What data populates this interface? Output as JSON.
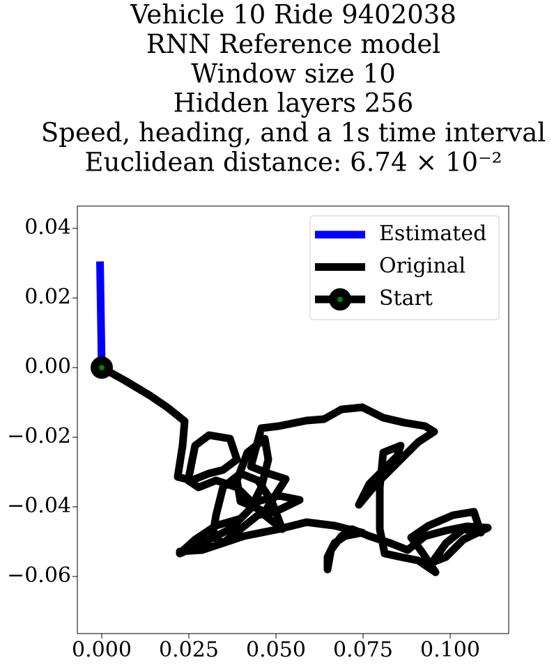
{
  "chart_data": {
    "type": "line",
    "title": [
      "Vehicle 10 Ride 9402038",
      "RNN Reference model",
      "Window size 10",
      "Hidden layers 256",
      "Speed, heading, and a 1s time interval",
      "Euclidean distance: 6.74 × 10⁻²"
    ],
    "xlim": [
      -0.007,
      0.1168
    ],
    "ylim": [
      -0.0764,
      0.0464
    ],
    "xticks": [
      {
        "value": 0,
        "label": "0.000"
      },
      0.025,
      {
        "value": 0.05,
        "label": "0.050"
      },
      0.075,
      {
        "value": 0.1,
        "label": "0.100"
      }
    ],
    "yticks": [
      0.04,
      0.02,
      {
        "value": 0,
        "label": "0.00"
      },
      {
        "value": -0.02,
        "label": "−0.02"
      },
      {
        "value": -0.04,
        "label": "−0.04"
      },
      {
        "value": -0.06,
        "label": "−0.06"
      }
    ],
    "grid": false,
    "legend": "upper right",
    "series": [
      {
        "name": "Estimated",
        "color": "#0000ff",
        "x": [
          -0.0005,
          0.0
        ],
        "values": [
          0.0305,
          0.0
        ]
      },
      {
        "name": "Original",
        "color": "#000000",
        "x": [
          0,
          0.0068,
          0.0138,
          0.0188,
          0.0238,
          0.0232,
          0.0218,
          0.0258,
          0.0308,
          0.0348,
          0.0388,
          0.0368,
          0.0308,
          0.0268,
          0.0248,
          0.0278,
          0.0328,
          0.0388,
          0.0428,
          0.0468,
          0.0518,
          0.0488,
          0.0448,
          0.0398,
          0.0348,
          0.0328,
          0.0318,
          0.0348,
          0.0398,
          0.0448,
          0.0498,
          0.0568,
          0.0508,
          0.0448,
          0.0408,
          0.0368,
          0.0308,
          0.0248,
          0.0224,
          0.0268,
          0.0328,
          0.0398,
          0.0428,
          0.0458,
          0.0478,
          0.0468,
          0.0418,
          0.0388,
          0.0398,
          0.0468,
          0.0528,
          0.0478,
          0.0428,
          0.0458,
          0.0508,
          0.0588,
          0.0638,
          0.0688,
          0.0748,
          0.0808,
          0.0868,
          0.0928,
          0.0954,
          0.0908,
          0.0848,
          0.0788,
          0.0738,
          0.0768,
          0.0848,
          0.0858,
          0.0808,
          0.0798,
          0.0798,
          0.0812,
          0.0858,
          0.0908,
          0.0958,
          0.0918,
          0.0888,
          0.0938,
          0.1008,
          0.1068,
          0.1088,
          0.1038,
          0.0988,
          0.0948,
          0.0988,
          0.1038,
          0.1108,
          0.1048,
          0.0988,
          0.0928,
          0.0878,
          0.0828,
          0.0768,
          0.0718,
          0.0688,
          0.0658,
          0.0648,
          0.0648,
          0.0668,
          0.0698,
          0.0748,
          0.0668,
          0.0588,
          0.0508,
          0.0408,
          0.0348,
          0.0288,
          0.0224
        ],
        "values": [
          0,
          -0.0038,
          -0.008,
          -0.0114,
          -0.0154,
          -0.0224,
          -0.0314,
          -0.0324,
          -0.0304,
          -0.0294,
          -0.0264,
          -0.0204,
          -0.0194,
          -0.0224,
          -0.0324,
          -0.0344,
          -0.0324,
          -0.0344,
          -0.0384,
          -0.0424,
          -0.0464,
          -0.0384,
          -0.0324,
          -0.0304,
          -0.0344,
          -0.0424,
          -0.0484,
          -0.0504,
          -0.0464,
          -0.0424,
          -0.0414,
          -0.038,
          -0.0368,
          -0.0384,
          -0.0424,
          -0.0464,
          -0.0494,
          -0.0524,
          -0.0534,
          -0.0494,
          -0.0454,
          -0.0434,
          -0.0404,
          -0.0344,
          -0.0264,
          -0.0204,
          -0.0244,
          -0.0324,
          -0.0384,
          -0.0414,
          -0.032,
          -0.0304,
          -0.0284,
          -0.0174,
          -0.0168,
          -0.0152,
          -0.0148,
          -0.012,
          -0.0114,
          -0.0144,
          -0.0158,
          -0.0168,
          -0.0184,
          -0.0214,
          -0.0274,
          -0.0334,
          -0.0394,
          -0.0334,
          -0.0254,
          -0.0224,
          -0.0244,
          -0.0344,
          -0.0464,
          -0.0534,
          -0.0544,
          -0.0554,
          -0.0588,
          -0.0528,
          -0.0488,
          -0.0454,
          -0.0424,
          -0.0414,
          -0.0474,
          -0.0464,
          -0.0504,
          -0.056,
          -0.0544,
          -0.0494,
          -0.046,
          -0.0456,
          -0.0468,
          -0.0484,
          -0.0524,
          -0.0504,
          -0.0484,
          -0.0464,
          -0.0484,
          -0.0524,
          -0.058,
          -0.0544,
          -0.0504,
          -0.0484,
          -0.0474,
          -0.0454,
          -0.0444,
          -0.0464,
          -0.0484,
          -0.0504,
          -0.0524,
          -0.0528
        ]
      },
      {
        "name": "Start",
        "color": "#000000",
        "marker_color": "#008000",
        "x": [
          0.0
        ],
        "values": [
          0.0
        ]
      }
    ]
  }
}
